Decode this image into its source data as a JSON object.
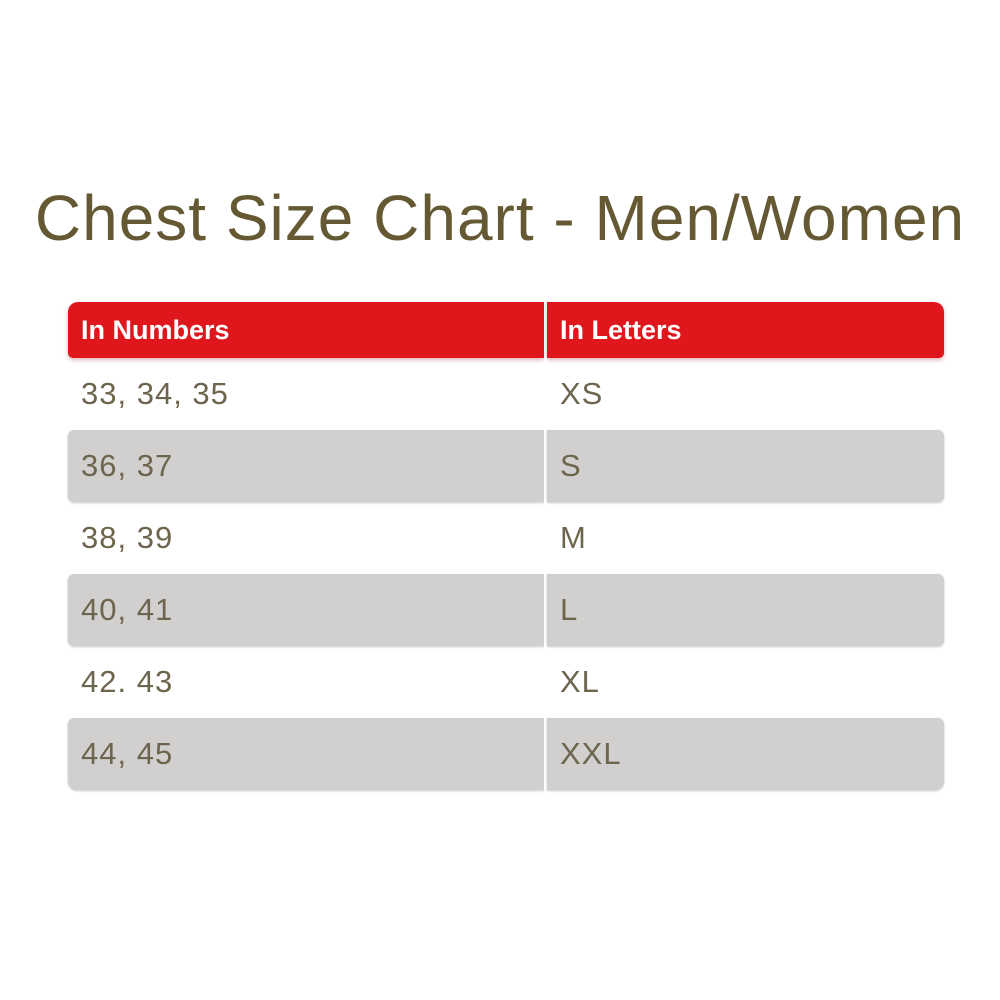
{
  "title": "Chest Size Chart - Men/Women",
  "colors": {
    "header_bg": "#e0161d",
    "header_text": "#ffffff",
    "alt_row_bg": "#d2d0ce",
    "cell_text": "#6e654e",
    "title_text": "#655934",
    "page_bg": "#ffffff"
  },
  "chart_data": {
    "type": "table",
    "title": "Chest Size Chart - Men/Women",
    "columns": [
      "In Numbers",
      "In Letters"
    ],
    "rows": [
      [
        "33, 34, 35",
        "XS"
      ],
      [
        "36, 37",
        "S"
      ],
      [
        "38, 39",
        "M"
      ],
      [
        "40, 41",
        "L"
      ],
      [
        "42. 43",
        "XL"
      ],
      [
        "44, 45",
        "XXL"
      ]
    ]
  },
  "table": {
    "headers": [
      "In Numbers",
      "In Letters"
    ],
    "rows": [
      {
        "numbers": "33, 34, 35",
        "letters": "XS"
      },
      {
        "numbers": "36, 37",
        "letters": "S"
      },
      {
        "numbers": "38, 39",
        "letters": "M"
      },
      {
        "numbers": "40, 41",
        "letters": "L"
      },
      {
        "numbers": "42. 43",
        "letters": "XL"
      },
      {
        "numbers": "44, 45",
        "letters": "XXL"
      }
    ]
  }
}
